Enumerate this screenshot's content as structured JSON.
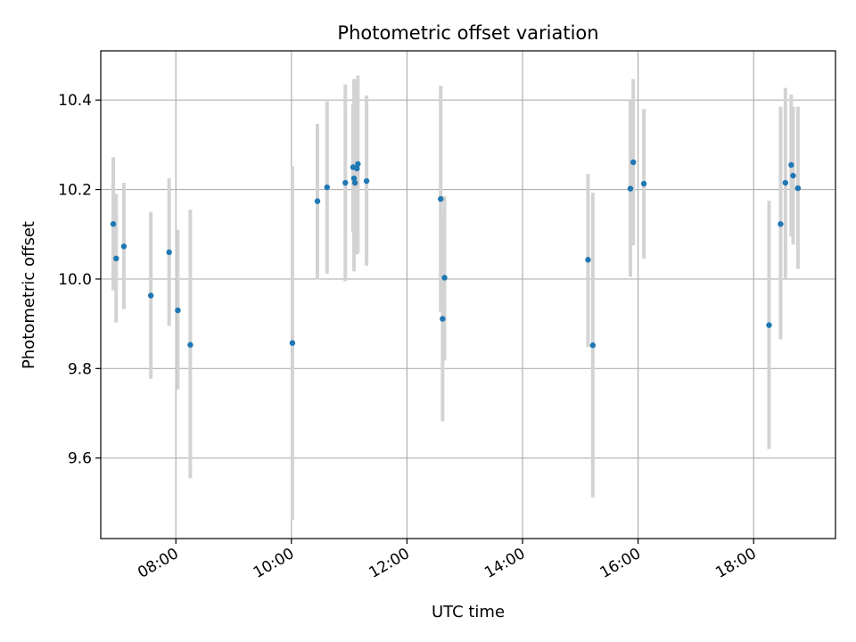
{
  "chart_data": {
    "type": "scatter",
    "title": "Photometric offset variation",
    "xlabel": "UTC time",
    "ylabel": "Photometric offset",
    "x_ticks": [
      "08:00",
      "10:00",
      "12:00",
      "14:00",
      "16:00",
      "18:00"
    ],
    "y_ticks": [
      "9.6",
      "9.8",
      "10.0",
      "10.2",
      "10.4"
    ],
    "xlim": [
      "06:42",
      "19:25"
    ],
    "ylim": [
      9.42,
      10.51
    ],
    "grid": true,
    "legend": "none",
    "colors": {
      "point": "#1f77b4",
      "errorbar": "#d3d3d3",
      "grid": "#b0b0b0"
    },
    "points": [
      {
        "x": "06:55",
        "y": 10.123,
        "err_low": 9.975,
        "err_high": 10.272
      },
      {
        "x": "06:58",
        "y": 10.046,
        "err_low": 9.903,
        "err_high": 10.19
      },
      {
        "x": "07:06",
        "y": 10.073,
        "err_low": 9.933,
        "err_high": 10.215
      },
      {
        "x": "07:34",
        "y": 9.963,
        "err_low": 9.777,
        "err_high": 10.15
      },
      {
        "x": "07:53",
        "y": 10.06,
        "err_low": 9.895,
        "err_high": 10.225
      },
      {
        "x": "08:02",
        "y": 9.93,
        "err_low": 9.753,
        "err_high": 10.11
      },
      {
        "x": "08:15",
        "y": 9.853,
        "err_low": 9.555,
        "err_high": 10.155
      },
      {
        "x": "10:01",
        "y": 9.857,
        "err_low": 9.462,
        "err_high": 10.252
      },
      {
        "x": "10:27",
        "y": 10.174,
        "err_low": 9.999,
        "err_high": 10.347
      },
      {
        "x": "10:37",
        "y": 10.205,
        "err_low": 10.012,
        "err_high": 10.397
      },
      {
        "x": "10:56",
        "y": 10.215,
        "err_low": 9.995,
        "err_high": 10.435
      },
      {
        "x": "11:04",
        "y": 10.25,
        "err_low": 10.105,
        "err_high": 10.39
      },
      {
        "x": "11:05",
        "y": 10.225,
        "err_low": 10.017,
        "err_high": 10.447
      },
      {
        "x": "11:06",
        "y": 10.215,
        "err_low": 10.065,
        "err_high": 10.37
      },
      {
        "x": "11:08",
        "y": 10.247,
        "err_low": 10.055,
        "err_high": 10.44
      },
      {
        "x": "11:09",
        "y": 10.257,
        "err_low": 10.058,
        "err_high": 10.455
      },
      {
        "x": "11:18",
        "y": 10.219,
        "err_low": 10.03,
        "err_high": 10.41
      },
      {
        "x": "12:35",
        "y": 10.179,
        "err_low": 9.927,
        "err_high": 10.432
      },
      {
        "x": "12:37",
        "y": 9.911,
        "err_low": 9.682,
        "err_high": 10.145
      },
      {
        "x": "12:39",
        "y": 10.003,
        "err_low": 9.818,
        "err_high": 10.185
      },
      {
        "x": "15:08",
        "y": 10.043,
        "err_low": 9.848,
        "err_high": 10.235
      },
      {
        "x": "15:13",
        "y": 9.852,
        "err_low": 9.512,
        "err_high": 10.193
      },
      {
        "x": "15:52",
        "y": 10.202,
        "err_low": 10.005,
        "err_high": 10.4
      },
      {
        "x": "15:55",
        "y": 10.261,
        "err_low": 10.075,
        "err_high": 10.447
      },
      {
        "x": "16:06",
        "y": 10.213,
        "err_low": 10.045,
        "err_high": 10.38
      },
      {
        "x": "18:16",
        "y": 9.897,
        "err_low": 9.62,
        "err_high": 10.175
      },
      {
        "x": "18:28",
        "y": 10.123,
        "err_low": 9.865,
        "err_high": 10.385
      },
      {
        "x": "18:33",
        "y": 10.215,
        "err_low": 10.0,
        "err_high": 10.427
      },
      {
        "x": "18:39",
        "y": 10.255,
        "err_low": 10.095,
        "err_high": 10.412
      },
      {
        "x": "18:41",
        "y": 10.231,
        "err_low": 10.077,
        "err_high": 10.385
      },
      {
        "x": "18:46",
        "y": 10.203,
        "err_low": 10.023,
        "err_high": 10.385
      }
    ]
  }
}
